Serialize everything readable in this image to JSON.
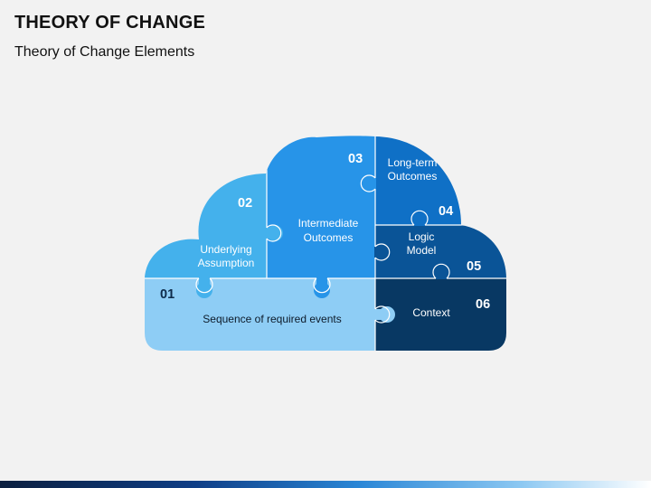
{
  "header": {
    "title": "THEORY OF CHANGE",
    "subtitle": "Theory of Change Elements"
  },
  "pieces": [
    {
      "number": "01",
      "label": [
        "Sequence of required events"
      ],
      "color": "#8ecdf5"
    },
    {
      "number": "02",
      "label": [
        "Underlying",
        "Assumption"
      ],
      "color": "#44b1ec"
    },
    {
      "number": "03",
      "label": [
        "Intermediate",
        "Outcomes"
      ],
      "color": "#2794e8"
    },
    {
      "number": "04",
      "label": [
        "Long-term",
        "Outcomes"
      ],
      "color": "#0f70c6"
    },
    {
      "number": "05",
      "label": [
        "Logic",
        "Model"
      ],
      "color": "#0a5497"
    },
    {
      "number": "06",
      "label": [
        "Context"
      ],
      "color": "#083863"
    }
  ],
  "colors": {
    "background": "#f2f2f2",
    "divider": "#ffffff"
  }
}
